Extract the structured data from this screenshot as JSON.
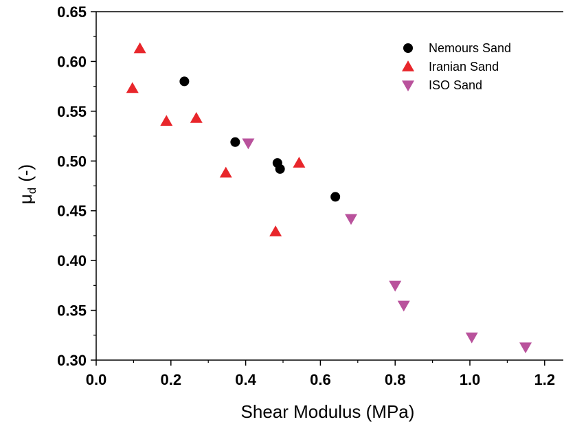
{
  "chart_data": {
    "type": "scatter",
    "title": "",
    "xlabel": "Shear Modulus (MPa)",
    "ylabel_main": "μ",
    "ylabel_sub": "d",
    "ylabel_unit": "(-)",
    "xlim": [
      0.0,
      1.25
    ],
    "ylim": [
      0.3,
      0.65
    ],
    "xticks": [
      0.0,
      0.2,
      0.4,
      0.6,
      0.8,
      1.0,
      1.2
    ],
    "xtick_labels": [
      "0.0",
      "0.2",
      "0.4",
      "0.6",
      "0.8",
      "1.0",
      "1.2"
    ],
    "yticks": [
      0.3,
      0.35,
      0.4,
      0.45,
      0.5,
      0.55,
      0.6,
      0.65
    ],
    "ytick_labels": [
      "0.30",
      "0.35",
      "0.40",
      "0.45",
      "0.50",
      "0.55",
      "0.60",
      "0.65"
    ],
    "grid": false,
    "legend_position": "top-right",
    "series": [
      {
        "name": "Nemours Sand",
        "marker": "circle",
        "color": "#000000",
        "points": [
          [
            0.236,
            0.58
          ],
          [
            0.372,
            0.519
          ],
          [
            0.485,
            0.498
          ],
          [
            0.492,
            0.492
          ],
          [
            0.64,
            0.464
          ]
        ]
      },
      {
        "name": "Iranian Sand",
        "marker": "triangle-up",
        "color": "#e8262b",
        "points": [
          [
            0.117,
            0.613
          ],
          [
            0.097,
            0.573
          ],
          [
            0.188,
            0.54
          ],
          [
            0.268,
            0.543
          ],
          [
            0.347,
            0.488
          ],
          [
            0.48,
            0.429
          ],
          [
            0.543,
            0.498
          ]
        ]
      },
      {
        "name": "ISO Sand",
        "marker": "triangle-down",
        "color": "#b9529c",
        "points": [
          [
            0.407,
            0.518
          ],
          [
            0.682,
            0.442
          ],
          [
            0.8,
            0.375
          ],
          [
            0.823,
            0.355
          ],
          [
            1.005,
            0.323
          ],
          [
            1.149,
            0.313
          ]
        ]
      }
    ]
  }
}
